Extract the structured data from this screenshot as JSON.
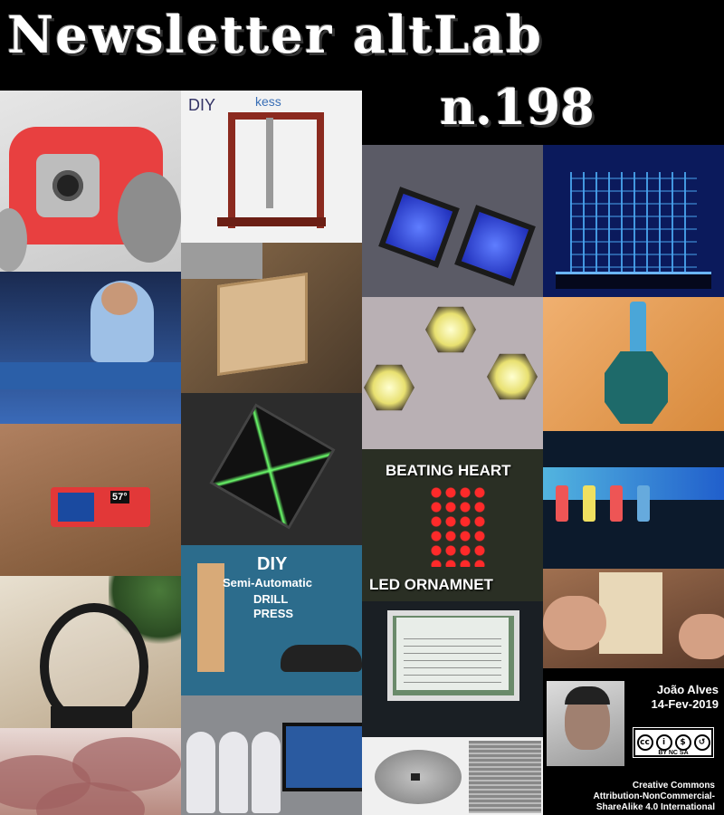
{
  "header": {
    "title": "Newsletter altLab",
    "issue": "n.198"
  },
  "tiles": {
    "press": {
      "diy": "DIY",
      "brand": "kess"
    },
    "thermo": {
      "reading": "57°"
    },
    "heart": {
      "top": "BEATING HEART",
      "bottom": "LED ORNAMNET"
    },
    "drill": {
      "line1": "DIY",
      "line2": "Semi-Automatic",
      "line3": "DRILL",
      "line4": "PRESS"
    }
  },
  "author": {
    "name": "João Alves",
    "date": "14-Fev-2019"
  },
  "license": {
    "badge_text": "BY NC SA",
    "line1": "Creative Commons",
    "line2": "Attribution-NonCommercial-",
    "line3": "ShareAlike 4.0 International"
  },
  "icons": [
    "cc-icon",
    "by-icon",
    "nc-icon",
    "sa-icon"
  ]
}
